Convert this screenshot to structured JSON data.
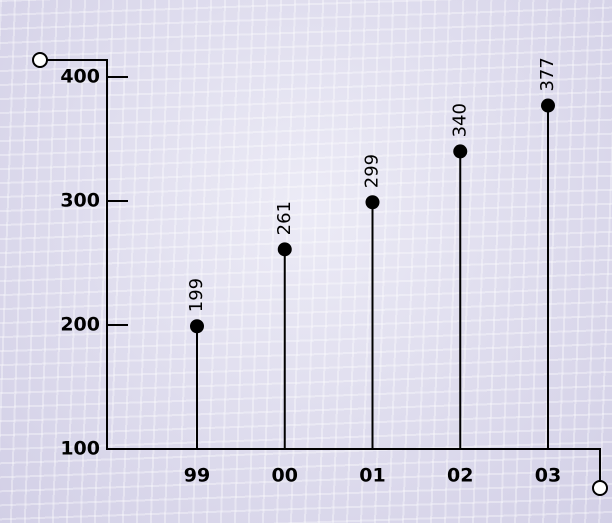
{
  "chart_data": {
    "type": "lollipop",
    "categories": [
      "99",
      "00",
      "01",
      "02",
      "03"
    ],
    "values": [
      199,
      261,
      299,
      340,
      377
    ],
    "color": "#000000",
    "ylim": [
      100,
      400
    ],
    "yticks": [
      100,
      200,
      300,
      400
    ]
  }
}
